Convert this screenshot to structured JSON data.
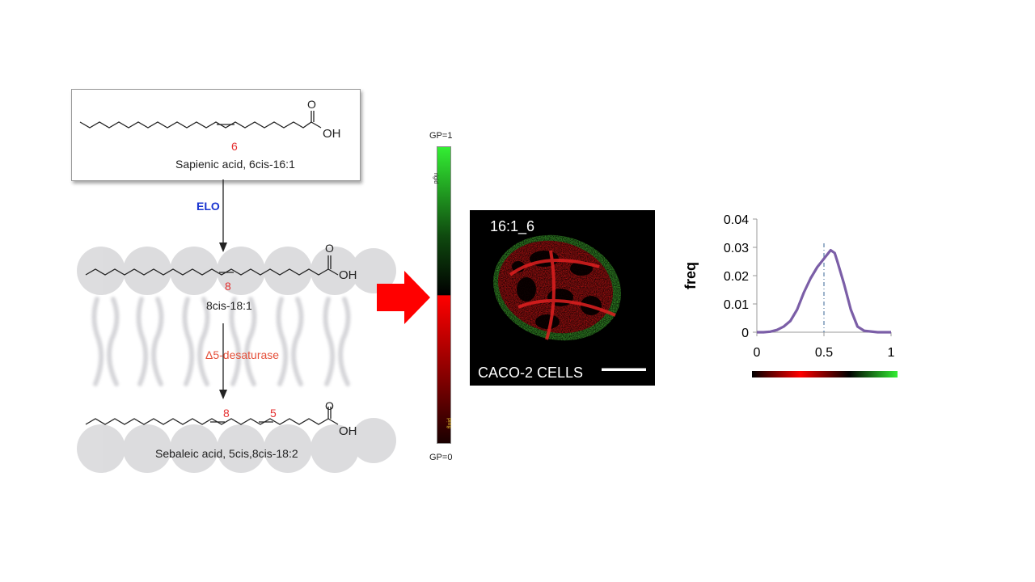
{
  "pathway": {
    "top_molecule": {
      "position": "6",
      "name": "Sapienic acid, 6cis-16:1",
      "acid_o": "O",
      "acid_oh": "OH"
    },
    "enzyme_1": "ELO",
    "middle_molecule": {
      "position": "8",
      "name": "8cis-18:1",
      "acid_o": "O",
      "acid_oh": "OH"
    },
    "enzyme_2": "Δ5-desaturase",
    "bottom_molecule": {
      "position_a": "8",
      "position_b": "5",
      "name": "Sebaleic acid, 5cis,8cis-18:2",
      "acid_o": "O",
      "acid_oh": "OH"
    }
  },
  "gp_scale": {
    "top_label": "GP=1",
    "bottom_label": "GP=0",
    "rigid_label": "rigid",
    "fluid_label": "fluid",
    "colors": {
      "rigid": "#33ee33",
      "mid": "#000000",
      "fluid": "#ff0000"
    }
  },
  "arrow_color": "#ff0000",
  "microscopy": {
    "sample_label": "16:1_6",
    "cell_label": "CACO-2 CELLS"
  },
  "chart_data": {
    "type": "line",
    "ylabel": "freq",
    "xlabel": "",
    "xlim": [
      0,
      1
    ],
    "ylim": [
      0,
      0.04
    ],
    "x_ticks": [
      "0",
      "0.5",
      "1"
    ],
    "y_ticks": [
      "0.04",
      "0.03",
      "0.02",
      "0.01",
      "0"
    ],
    "reference_line_x": 0.5,
    "line_color": "#7b5ea7",
    "series": [
      {
        "x": [
          0,
          0.05,
          0.1,
          0.15,
          0.2,
          0.25,
          0.3,
          0.35,
          0.4,
          0.45,
          0.5,
          0.55,
          0.58,
          0.6,
          0.65,
          0.7,
          0.75,
          0.8,
          0.9,
          1.0
        ],
        "y": [
          0,
          0,
          0.0002,
          0.0008,
          0.002,
          0.004,
          0.008,
          0.014,
          0.019,
          0.023,
          0.026,
          0.029,
          0.028,
          0.025,
          0.017,
          0.008,
          0.002,
          0.0005,
          0,
          0
        ]
      }
    ],
    "colorbar": [
      "#000000",
      "#ff0000",
      "#000000",
      "#33ee33"
    ]
  }
}
